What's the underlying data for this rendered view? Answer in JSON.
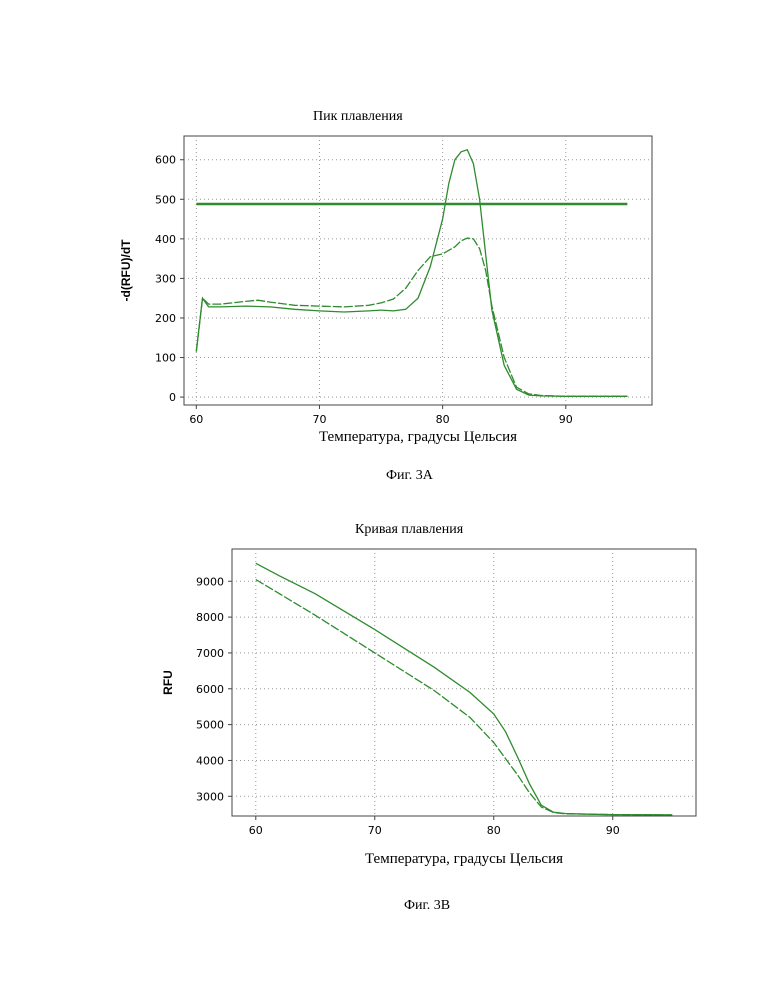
{
  "figures": [
    {
      "title": "Пик плавления",
      "caption": "Фиг. 3А"
    },
    {
      "title": "Кривая плавления",
      "caption": "Фиг. 3В"
    }
  ],
  "chart_data": [
    {
      "type": "line",
      "title": "Пик плавления",
      "xlabel": "Температура, градусы Цельсия",
      "ylabel": "-d(RFU)/dT",
      "xlim": [
        59,
        97
      ],
      "ylim": [
        -20,
        660
      ],
      "xticks": [
        60,
        70,
        80,
        90
      ],
      "yticks": [
        0,
        100,
        200,
        300,
        400,
        500,
        600
      ],
      "grid": true,
      "line_color": "#2e8b2e",
      "threshold": {
        "y": 488,
        "x": [
          60,
          95
        ]
      },
      "series": [
        {
          "x": [
            60,
            60.5,
            61,
            62,
            64,
            66,
            68,
            70,
            72,
            74,
            75,
            76,
            77,
            78,
            79,
            80,
            80.5,
            81,
            81.5,
            82,
            82.5,
            83,
            83.5,
            84,
            85,
            86,
            87,
            88,
            90,
            95
          ],
          "y": [
            115,
            250,
            228,
            228,
            230,
            228,
            222,
            218,
            215,
            218,
            220,
            218,
            222,
            250,
            330,
            450,
            540,
            600,
            620,
            625,
            590,
            500,
            360,
            220,
            80,
            20,
            5,
            3,
            2,
            2
          ]
        },
        {
          "x": [
            60,
            60.5,
            61,
            62,
            64,
            65,
            66,
            68,
            70,
            72,
            74,
            75,
            76,
            77,
            78,
            79,
            80,
            81,
            81.5,
            82,
            82.5,
            83,
            83.5,
            84,
            85,
            86,
            87,
            88,
            90,
            95
          ],
          "y": [
            115,
            250,
            235,
            235,
            242,
            245,
            240,
            232,
            230,
            228,
            232,
            238,
            248,
            275,
            320,
            355,
            362,
            380,
            395,
            402,
            400,
            375,
            320,
            230,
            100,
            25,
            8,
            4,
            2,
            2
          ]
        }
      ]
    },
    {
      "type": "line",
      "title": "Кривая плавления",
      "xlabel": "Температура, градусы Цельсия",
      "ylabel": "RFU",
      "xlim": [
        58,
        97
      ],
      "ylim": [
        2450,
        9900
      ],
      "xticks": [
        60,
        70,
        80,
        90
      ],
      "yticks": [
        3000,
        4000,
        5000,
        6000,
        7000,
        8000,
        9000
      ],
      "grid": true,
      "line_color": "#2e8b2e",
      "series": [
        {
          "x": [
            60,
            62,
            65,
            70,
            75,
            78,
            80,
            81,
            82,
            83,
            84,
            85,
            86,
            88,
            90,
            95
          ],
          "y": [
            9500,
            9150,
            8650,
            7650,
            6600,
            5900,
            5300,
            4800,
            4100,
            3350,
            2750,
            2560,
            2520,
            2500,
            2490,
            2480
          ]
        },
        {
          "x": [
            60,
            62,
            65,
            70,
            75,
            78,
            80,
            81,
            82,
            83,
            84,
            85,
            86,
            88,
            90,
            95
          ],
          "y": [
            9050,
            8650,
            8050,
            7000,
            5950,
            5200,
            4500,
            4050,
            3600,
            3100,
            2700,
            2550,
            2510,
            2500,
            2490,
            2480
          ]
        }
      ]
    }
  ]
}
